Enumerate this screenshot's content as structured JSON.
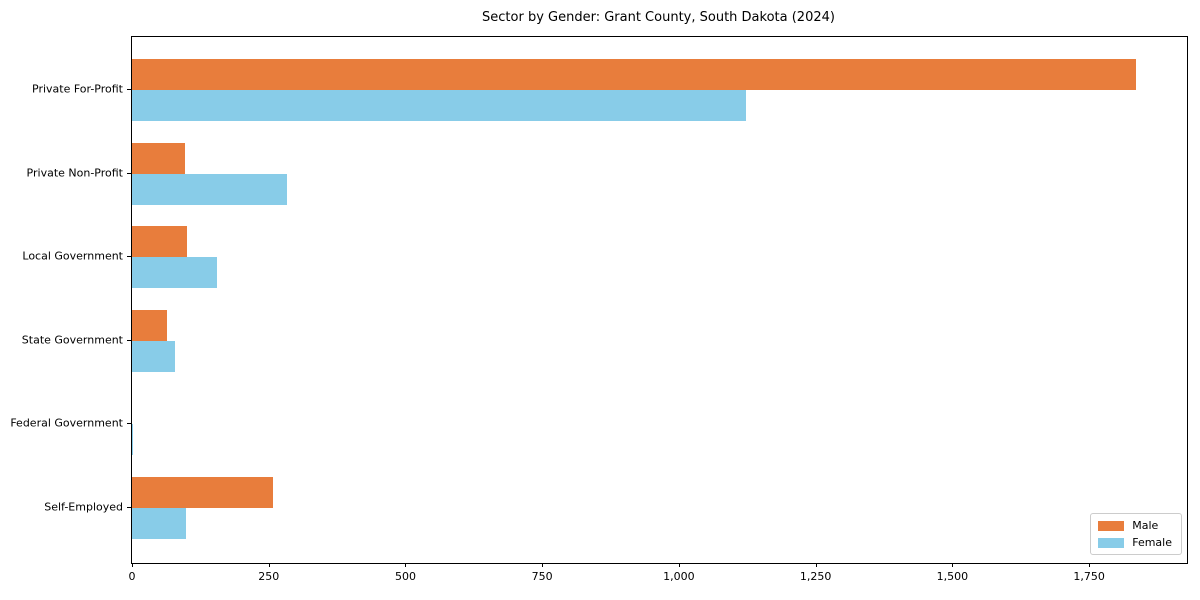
{
  "chart_data": {
    "type": "bar",
    "orientation": "horizontal",
    "title": "Sector by Gender: Grant County, South Dakota (2024)",
    "categories": [
      "Private For-Profit",
      "Private Non-Profit",
      "Local Government",
      "State Government",
      "Federal Government",
      "Self-Employed"
    ],
    "series": [
      {
        "name": "Male",
        "color": "#e87d3c",
        "values": [
          1835,
          97,
          100,
          64,
          0,
          257
        ]
      },
      {
        "name": "Female",
        "color": "#88cce8",
        "values": [
          1122,
          283,
          155,
          79,
          2,
          99
        ]
      }
    ],
    "xlim": [
      0,
      1929
    ],
    "x_ticks": [
      0,
      250,
      500,
      750,
      1000,
      1250,
      1500,
      1750
    ],
    "x_tick_labels": [
      "0",
      "250",
      "500",
      "750",
      "1,000",
      "1,250",
      "1,500",
      "1,750"
    ],
    "ylabel": "",
    "xlabel": "",
    "grid": false,
    "legend": {
      "position": "lower right",
      "entries": [
        "Male",
        "Female"
      ]
    },
    "colors": {
      "background": "#ffffff",
      "spine": "#000000",
      "text": "#000000",
      "legend_border": "#cccccc"
    }
  }
}
